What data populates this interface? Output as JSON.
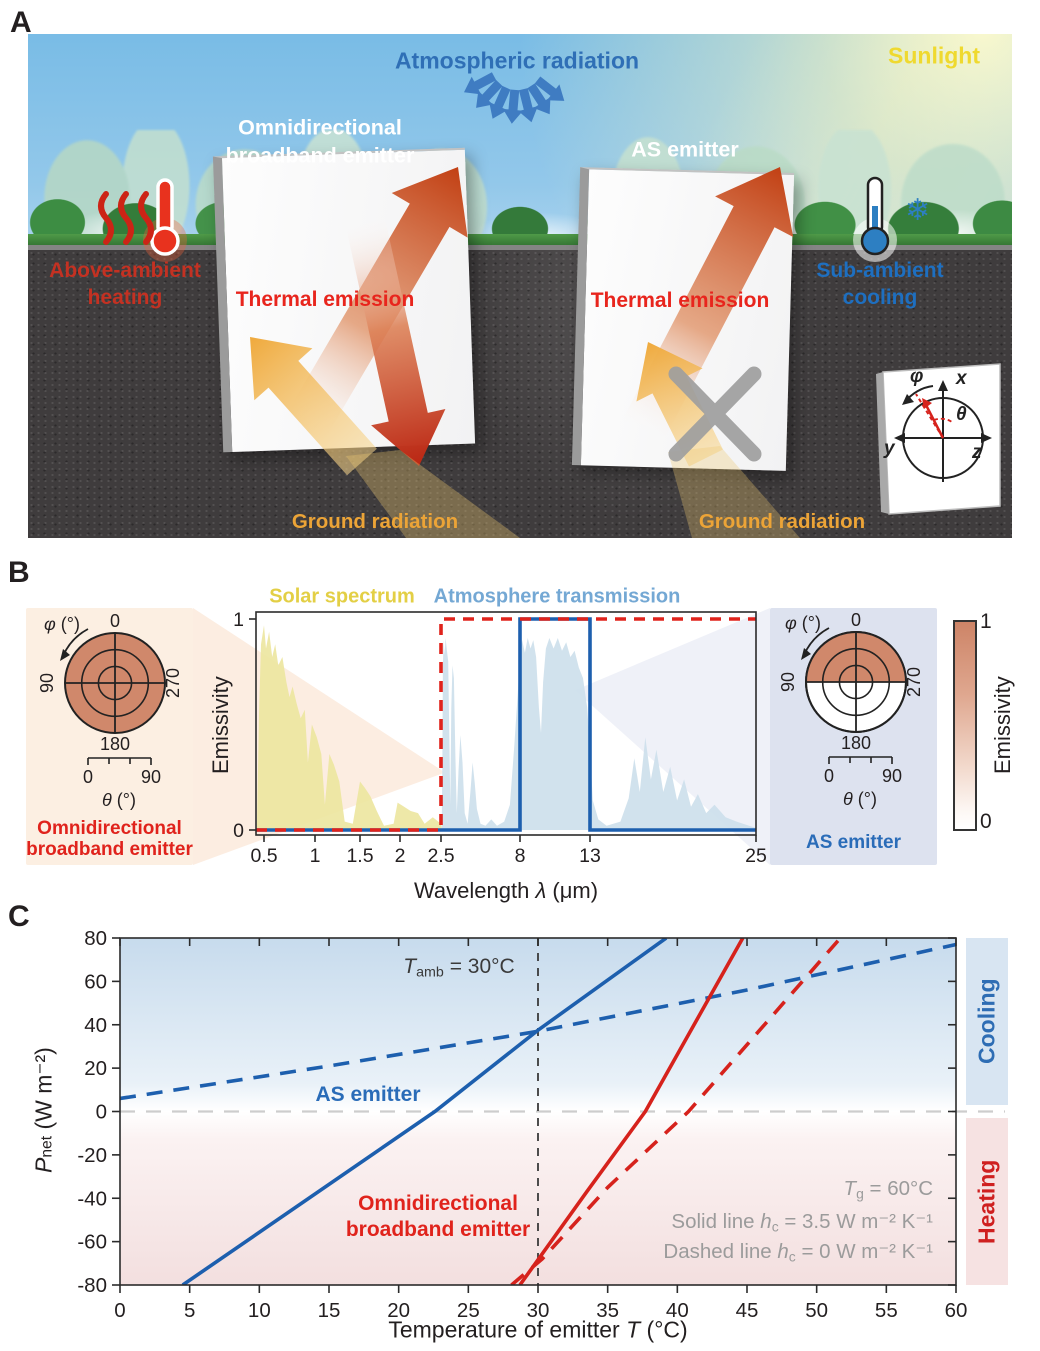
{
  "panel_a": {
    "label": "A",
    "atmospheric_radiation": "Atmospheric radiation",
    "sunlight": "Sunlight",
    "omni_emitter_line1": "Omnidirectional",
    "omni_emitter_line2": "broadband emitter",
    "as_emitter": "AS emitter",
    "thermal_emission_left": "Thermal emission",
    "thermal_emission_right": "Thermal emission",
    "above_ambient_line1": "Above-ambient",
    "above_ambient_line2": "heating",
    "sub_ambient_line1": "Sub-ambient",
    "sub_ambient_line2": "cooling",
    "ground_radiation_left": "Ground radiation",
    "ground_radiation_right": "Ground radiation",
    "snowflake_icon": "❄",
    "inset": {
      "x": "x",
      "y": "y",
      "z": "z",
      "theta": "θ",
      "phi": "φ"
    }
  },
  "panel_b": {
    "label": "B",
    "spectrum_titles": {
      "solar": "Solar spectrum",
      "atmosphere": "Atmosphere transmission"
    },
    "axis": {
      "ylabel": "Emissivity",
      "xlabel_prefix": "Wavelength ",
      "xlabel_symbol": "λ",
      "xlabel_suffix": " (μm)"
    },
    "polar_left": {
      "phi_symbol": "φ",
      "phi_unit": " (°)",
      "deg0": "0",
      "deg90": "90",
      "deg180": "180",
      "deg270": "270",
      "theta_scale_min": "0",
      "theta_scale_max": "90",
      "theta_symbol": "θ",
      "theta_unit": " (°)",
      "caption_line1": "Omnidirectional",
      "caption_line2": "broadband emitter"
    },
    "polar_right": {
      "phi_symbol": "φ",
      "phi_unit": " (°)",
      "deg0": "0",
      "deg90": "90",
      "deg180": "180",
      "deg270": "270",
      "theta_scale_min": "0",
      "theta_scale_max": "90",
      "theta_symbol": "θ",
      "theta_unit": " (°)",
      "caption": "AS emitter"
    },
    "colorbar": {
      "max": "1",
      "min": "0",
      "label": "Emissivity"
    }
  },
  "panel_c": {
    "label": "C",
    "t_amb": {
      "symbol": "T",
      "sub": "amb",
      "rest": " = 30°C"
    },
    "t_g": {
      "symbol": "T",
      "sub": "g",
      "rest": " = 60°C"
    },
    "solid_note": {
      "prefix": "Solid line ",
      "symbol": "h",
      "sub": "c",
      "rest": " = 3.5 W m⁻² K⁻¹"
    },
    "dashed_note": {
      "prefix": "Dashed line ",
      "symbol": "h",
      "sub": "c",
      "rest": " = 0 W m⁻² K⁻¹"
    },
    "as_emitter_label": "AS emitter",
    "broadband_label_line1": "Omnidirectional",
    "broadband_label_line2": "broadband emitter",
    "cooling": "Cooling",
    "heating": "Heating",
    "xlabel": {
      "prefix": "Temperature of emitter ",
      "symbol": "T",
      "suffix": " (°C)"
    },
    "ylabel": {
      "symbol": "P",
      "sub": "net",
      "rest": " (W m⁻²)"
    }
  },
  "colors": {
    "accent_red": "#d6221c",
    "accent_blue": "#1d5fae",
    "solar_yellow": "#ece69f",
    "atmosphere_blue": "#ccdfeb",
    "emissivity_salmon": "#d0886b"
  },
  "chart_data": [
    {
      "id": "emissivity-spectrum",
      "type": "area",
      "title_left": "Solar spectrum",
      "title_right": "Atmosphere transmission",
      "xlabel": "Wavelength λ (μm)",
      "ylabel": "Emissivity",
      "x_ticks": [
        0.5,
        1,
        1.5,
        2,
        2.5,
        8,
        13,
        25
      ],
      "y_ticks": [
        0,
        1
      ],
      "xlim": [
        0.42,
        25
      ],
      "ylim": [
        0,
        1
      ],
      "x_scale_note": "compressed non-linear wavelength axis",
      "series": [
        {
          "name": "Solar spectrum",
          "style": "filled-area",
          "color": "#ece69f",
          "points": [
            [
              0.43,
              0.02
            ],
            [
              0.45,
              0.55
            ],
            [
              0.47,
              0.88
            ],
            [
              0.5,
              0.97
            ],
            [
              0.52,
              0.86
            ],
            [
              0.55,
              0.94
            ],
            [
              0.58,
              0.82
            ],
            [
              0.61,
              0.88
            ],
            [
              0.64,
              0.78
            ],
            [
              0.68,
              0.82
            ],
            [
              0.72,
              0.7
            ],
            [
              0.75,
              0.63
            ],
            [
              0.78,
              0.68
            ],
            [
              0.82,
              0.6
            ],
            [
              0.86,
              0.53
            ],
            [
              0.9,
              0.57
            ],
            [
              0.93,
              0.32
            ],
            [
              0.97,
              0.5
            ],
            [
              1.02,
              0.44
            ],
            [
              1.07,
              0.36
            ],
            [
              1.11,
              0.12
            ],
            [
              1.16,
              0.36
            ],
            [
              1.21,
              0.31
            ],
            [
              1.27,
              0.23
            ],
            [
              1.33,
              0.04
            ],
            [
              1.42,
              0.03
            ],
            [
              1.5,
              0.23
            ],
            [
              1.56,
              0.2
            ],
            [
              1.63,
              0.16
            ],
            [
              1.71,
              0.09
            ],
            [
              1.8,
              0.02
            ],
            [
              1.92,
              0.03
            ],
            [
              1.97,
              0.13
            ],
            [
              2.05,
              0.11
            ],
            [
              2.13,
              0.09
            ],
            [
              2.22,
              0.08
            ],
            [
              2.3,
              0.03
            ],
            [
              2.4,
              0.06
            ],
            [
              2.5,
              0.03
            ],
            [
              2.58,
              0
            ]
          ]
        },
        {
          "name": "Atmosphere transmission",
          "style": "filled-area",
          "color": "#ccdfeb",
          "points": [
            [
              2.55,
              0
            ],
            [
              2.6,
              0.35
            ],
            [
              2.63,
              0.78
            ],
            [
              2.68,
              0.9
            ],
            [
              2.75,
              0.83
            ],
            [
              2.82,
              0.91
            ],
            [
              2.9,
              0.86
            ],
            [
              3.0,
              0.8
            ],
            [
              3.08,
              0.45
            ],
            [
              3.15,
              0.12
            ],
            [
              3.22,
              0.58
            ],
            [
              3.3,
              0.78
            ],
            [
              3.4,
              0.72
            ],
            [
              3.5,
              0.35
            ],
            [
              3.6,
              0.08
            ],
            [
              3.72,
              0.28
            ],
            [
              3.85,
              0.45
            ],
            [
              4.0,
              0.32
            ],
            [
              4.15,
              0.08
            ],
            [
              4.35,
              0.03
            ],
            [
              4.55,
              0.18
            ],
            [
              4.7,
              0.32
            ],
            [
              4.85,
              0.22
            ],
            [
              5.0,
              0.1
            ],
            [
              5.25,
              0.03
            ],
            [
              5.6,
              0.02
            ],
            [
              6.0,
              0.05
            ],
            [
              6.4,
              0.02
            ],
            [
              6.9,
              0.04
            ],
            [
              7.3,
              0.12
            ],
            [
              7.6,
              0.4
            ],
            [
              7.85,
              0.65
            ],
            [
              8.0,
              0.82
            ],
            [
              8.15,
              0.9
            ],
            [
              8.35,
              0.84
            ],
            [
              8.55,
              0.91
            ],
            [
              8.75,
              0.86
            ],
            [
              8.95,
              0.9
            ],
            [
              9.15,
              0.82
            ],
            [
              9.35,
              0.58
            ],
            [
              9.5,
              0.46
            ],
            [
              9.65,
              0.7
            ],
            [
              9.85,
              0.86
            ],
            [
              10.1,
              0.91
            ],
            [
              10.4,
              0.86
            ],
            [
              10.7,
              0.91
            ],
            [
              11.0,
              0.85
            ],
            [
              11.3,
              0.89
            ],
            [
              11.6,
              0.82
            ],
            [
              11.9,
              0.85
            ],
            [
              12.2,
              0.77
            ],
            [
              12.5,
              0.72
            ],
            [
              12.8,
              0.58
            ],
            [
              13.0,
              0.38
            ],
            [
              13.2,
              0.14
            ],
            [
              13.6,
              0.05
            ],
            [
              14.2,
              0.02
            ],
            [
              15.2,
              0.04
            ],
            [
              15.8,
              0.15
            ],
            [
              16.2,
              0.34
            ],
            [
              16.6,
              0.18
            ],
            [
              17.0,
              0.44
            ],
            [
              17.4,
              0.24
            ],
            [
              17.8,
              0.38
            ],
            [
              18.3,
              0.18
            ],
            [
              18.8,
              0.3
            ],
            [
              19.3,
              0.14
            ],
            [
              19.8,
              0.24
            ],
            [
              20.3,
              0.11
            ],
            [
              20.8,
              0.17
            ],
            [
              21.4,
              0.08
            ],
            [
              22.0,
              0.12
            ],
            [
              22.8,
              0.06
            ],
            [
              23.6,
              0.04
            ],
            [
              24.5,
              0.02
            ],
            [
              25.0,
              0.01
            ]
          ]
        },
        {
          "name": "Omnidirectional broadband emitter emissivity",
          "style": "dashed-line",
          "color": "#e0231c",
          "points": [
            [
              0.42,
              0
            ],
            [
              2.5,
              0
            ],
            [
              2.5,
              1
            ],
            [
              25,
              1
            ]
          ]
        },
        {
          "name": "AS emitter emissivity",
          "style": "solid-line",
          "color": "#1d5fae",
          "points": [
            [
              0.42,
              0
            ],
            [
              8,
              0
            ],
            [
              8,
              1
            ],
            [
              13,
              1
            ],
            [
              13,
              0
            ],
            [
              25,
              0
            ]
          ]
        }
      ]
    },
    {
      "id": "directional-emissivity-polar",
      "type": "heatmap",
      "angular_axis": "φ (°), labels 0 / 90 / 180 / 270",
      "radial_axis": "θ (°), scale 0–90",
      "colorbar": {
        "label": "Emissivity",
        "min": 0,
        "max": 1
      },
      "maps": [
        {
          "name": "Omnidirectional broadband emitter",
          "emissivity": "1 for all φ and θ (full disk filled)"
        },
        {
          "name": "AS emitter",
          "emissivity": "1 for top half (φ 270→0→90), 0 for bottom half (φ 90→180→270)"
        }
      ]
    },
    {
      "id": "pnet-vs-emitter-temperature",
      "type": "line",
      "xlabel": "Temperature of emitter T (°C)",
      "ylabel": "P_net (W m⁻²)",
      "xlim": [
        0,
        60
      ],
      "ylim": [
        -80,
        80
      ],
      "x_ticks": [
        0,
        5,
        10,
        15,
        20,
        25,
        30,
        35,
        40,
        45,
        50,
        55,
        60
      ],
      "y_ticks": [
        -80,
        -60,
        -40,
        -20,
        0,
        20,
        40,
        60,
        80
      ],
      "annotations": {
        "t_amb": "T_amb = 30°C",
        "t_g": "T_g = 60°C",
        "solid": "Solid line h_c = 3.5 W m⁻² K⁻¹",
        "dashed": "Dashed line h_c = 0 W m⁻² K⁻¹",
        "cooling_band": "Cooling (P_net > 0)",
        "heating_band": "Heating (P_net < 0)"
      },
      "reference_lines": {
        "vertical_x": 30,
        "horizontal_y": 0
      },
      "series": [
        {
          "name": "AS emitter, h_c = 3.5 W m⁻² K⁻¹",
          "color": "#1d5fae",
          "style": "solid",
          "points": [
            [
              4.5,
              -80
            ],
            [
              22.6,
              0
            ],
            [
              30,
              37.5
            ],
            [
              39.2,
              80
            ]
          ]
        },
        {
          "name": "AS emitter, h_c = 0 W m⁻² K⁻¹",
          "color": "#1d5fae",
          "style": "dashed",
          "points": [
            [
              0,
              6
            ],
            [
              15,
              21
            ],
            [
              30,
              37
            ],
            [
              45,
              56
            ],
            [
              60,
              77
            ]
          ]
        },
        {
          "name": "Omnidirectional broadband emitter, h_c = 3.5 W m⁻² K⁻¹",
          "color": "#d6221c",
          "style": "solid",
          "points": [
            [
              28.7,
              -80
            ],
            [
              33.5,
              -37
            ],
            [
              37.7,
              0
            ],
            [
              44.7,
              80
            ]
          ]
        },
        {
          "name": "Omnidirectional broadband emitter, h_c = 0 W m⁻² K⁻¹",
          "color": "#d6221c",
          "style": "dashed",
          "points": [
            [
              28.1,
              -80
            ],
            [
              30.3,
              -68
            ],
            [
              35,
              -35
            ],
            [
              40.8,
              0
            ],
            [
              51.7,
              80
            ]
          ]
        }
      ]
    }
  ]
}
